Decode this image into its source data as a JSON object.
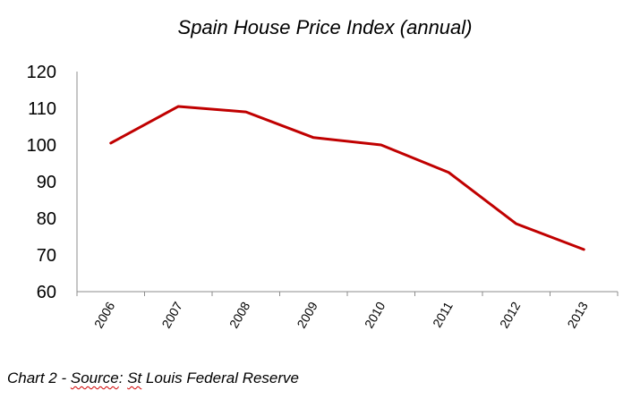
{
  "caption": {
    "prefix": "Chart 2 - ",
    "source_word": "Source",
    "colon_space": ": ",
    "st_word": "St",
    "suffix": " Louis Federal Reserve"
  },
  "chart_data": {
    "type": "line",
    "title": "Spain House Price Index (annual)",
    "xlabel": "",
    "ylabel": "",
    "categories": [
      "2006",
      "2007",
      "2008",
      "2009",
      "2010",
      "2011",
      "2012",
      "2013"
    ],
    "series": [
      {
        "values": [
          100.5,
          110.5,
          109.0,
          102.0,
          100.0,
          92.5,
          78.5,
          71.5
        ],
        "color": "#c00000"
      }
    ],
    "ylim": [
      60,
      120
    ],
    "yticks": [
      60,
      70,
      80,
      90,
      100,
      110,
      120
    ],
    "grid": false,
    "legend": "none",
    "axis_color": "#8c8c8c",
    "line_color": "#c00000"
  }
}
